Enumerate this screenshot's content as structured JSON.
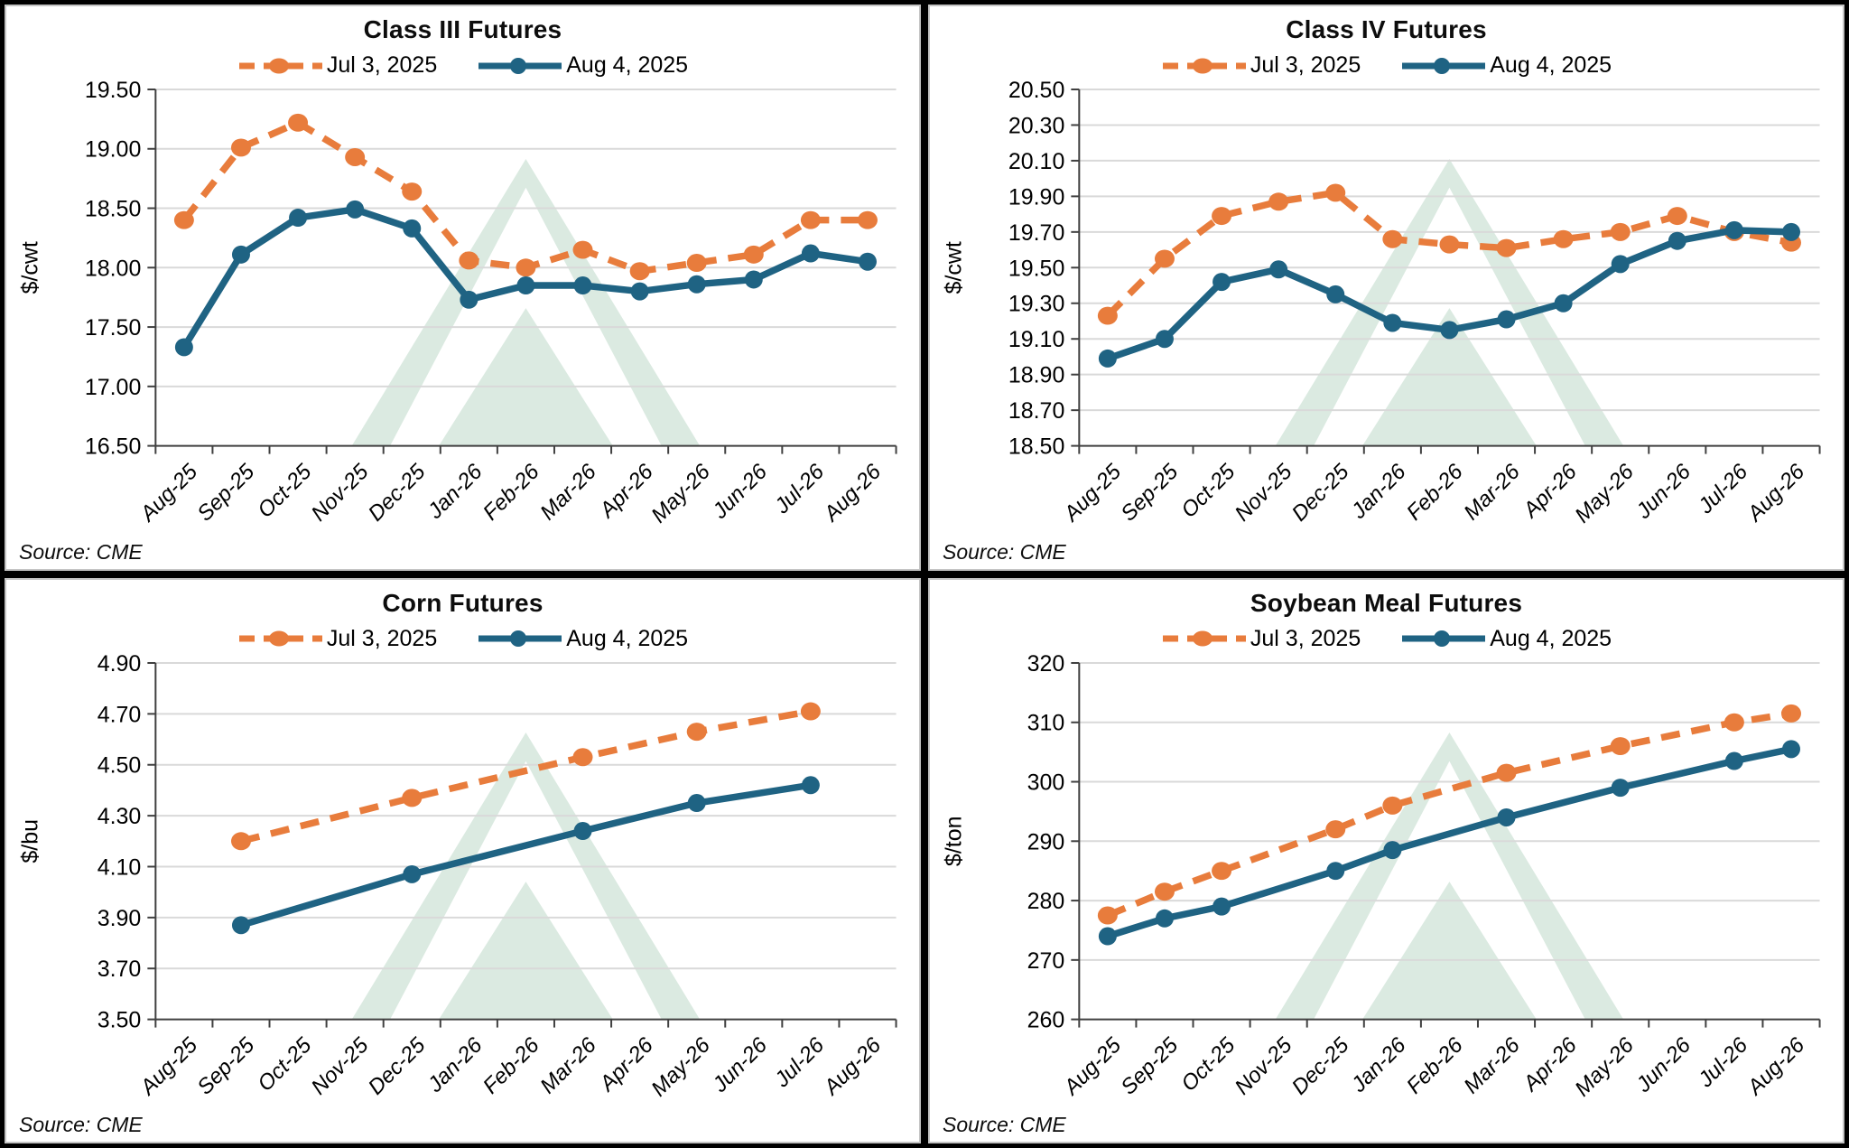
{
  "colors": {
    "jul3": "#E87C3C",
    "aug4": "#1F6383",
    "grid": "#D9D9D9",
    "axis": "#404040",
    "watermark": "#DBEAE1",
    "panel_border": "#C4C4C4",
    "background": "#FFFFFF",
    "text": "#000000"
  },
  "legend": {
    "series1": "Jul 3, 2025",
    "series2": "Aug 4, 2025"
  },
  "months": [
    "Aug-25",
    "Sep-25",
    "Oct-25",
    "Nov-25",
    "Dec-25",
    "Jan-26",
    "Feb-26",
    "Mar-26",
    "Apr-26",
    "May-26",
    "Jun-26",
    "Jul-26",
    "Aug-26"
  ],
  "chart_data": [
    {
      "type": "line",
      "title": "Class III Futures",
      "ylabel": "$/cwt",
      "xlabel": "",
      "ylim": [
        16.5,
        19.5
      ],
      "yticks": [
        "16.50",
        "17.00",
        "17.50",
        "18.00",
        "18.50",
        "19.00",
        "19.50"
      ],
      "grid": "horizontal",
      "legend_position": "top",
      "categories": [
        "Aug-25",
        "Sep-25",
        "Oct-25",
        "Nov-25",
        "Dec-25",
        "Jan-26",
        "Feb-26",
        "Mar-26",
        "Apr-26",
        "May-26",
        "Jun-26",
        "Jul-26",
        "Aug-26"
      ],
      "series": [
        {
          "name": "Jul 3, 2025",
          "style": "dashed",
          "color_key": "jul3",
          "x_indices": [
            0,
            1,
            2,
            3,
            4,
            5,
            6,
            7,
            8,
            9,
            10,
            11,
            12
          ],
          "values": [
            18.4,
            19.01,
            19.22,
            18.93,
            18.64,
            18.06,
            18.0,
            18.15,
            17.97,
            18.04,
            18.11,
            18.4,
            18.4
          ]
        },
        {
          "name": "Aug 4, 2025",
          "style": "solid",
          "color_key": "aug4",
          "x_indices": [
            0,
            1,
            2,
            3,
            4,
            5,
            6,
            7,
            8,
            9,
            10,
            11,
            12
          ],
          "values": [
            17.33,
            18.11,
            18.42,
            18.49,
            18.33,
            17.73,
            17.85,
            17.85,
            17.8,
            17.86,
            17.9,
            18.12,
            18.05
          ]
        }
      ],
      "source": "Source: CME"
    },
    {
      "type": "line",
      "title": "Class IV Futures",
      "ylabel": "$/cwt",
      "xlabel": "",
      "ylim": [
        18.5,
        20.5
      ],
      "yticks": [
        "18.50",
        "18.70",
        "18.90",
        "19.10",
        "19.30",
        "19.50",
        "19.70",
        "19.90",
        "20.10",
        "20.30",
        "20.50"
      ],
      "grid": "horizontal",
      "legend_position": "top",
      "categories": [
        "Aug-25",
        "Sep-25",
        "Oct-25",
        "Nov-25",
        "Dec-25",
        "Jan-26",
        "Feb-26",
        "Mar-26",
        "Apr-26",
        "May-26",
        "Jun-26",
        "Jul-26",
        "Aug-26"
      ],
      "series": [
        {
          "name": "Jul 3, 2025",
          "style": "dashed",
          "color_key": "jul3",
          "x_indices": [
            0,
            1,
            2,
            3,
            4,
            5,
            6,
            7,
            8,
            9,
            10,
            11,
            12
          ],
          "values": [
            19.23,
            19.55,
            19.79,
            19.87,
            19.92,
            19.66,
            19.63,
            19.61,
            19.66,
            19.7,
            19.79,
            19.7,
            19.64
          ]
        },
        {
          "name": "Aug 4, 2025",
          "style": "solid",
          "color_key": "aug4",
          "x_indices": [
            0,
            1,
            2,
            3,
            4,
            5,
            6,
            7,
            8,
            9,
            10,
            11,
            12
          ],
          "values": [
            18.99,
            19.1,
            19.42,
            19.49,
            19.35,
            19.19,
            19.15,
            19.21,
            19.3,
            19.52,
            19.65,
            19.71,
            19.7
          ]
        }
      ],
      "source": "Source: CME"
    },
    {
      "type": "line",
      "title": "Corn Futures",
      "ylabel": "$/bu",
      "xlabel": "",
      "ylim": [
        3.5,
        4.9
      ],
      "yticks": [
        "3.50",
        "3.70",
        "3.90",
        "4.10",
        "4.30",
        "4.50",
        "4.70",
        "4.90"
      ],
      "grid": "horizontal",
      "legend_position": "top",
      "categories": [
        "Aug-25",
        "Sep-25",
        "Oct-25",
        "Nov-25",
        "Dec-25",
        "Jan-26",
        "Feb-26",
        "Mar-26",
        "Apr-26",
        "May-26",
        "Jun-26",
        "Jul-26",
        "Aug-26"
      ],
      "series": [
        {
          "name": "Jul 3, 2025",
          "style": "dashed",
          "color_key": "jul3",
          "x_indices": [
            1,
            4,
            7,
            9,
            11
          ],
          "values": [
            4.2,
            4.37,
            4.53,
            4.63,
            4.71
          ]
        },
        {
          "name": "Aug 4, 2025",
          "style": "solid",
          "color_key": "aug4",
          "x_indices": [
            1,
            4,
            7,
            9,
            11
          ],
          "values": [
            3.87,
            4.07,
            4.24,
            4.35,
            4.42
          ]
        }
      ],
      "source": "Source: CME"
    },
    {
      "type": "line",
      "title": "Soybean Meal Futures",
      "ylabel": "$/ton",
      "xlabel": "",
      "ylim": [
        260,
        320
      ],
      "yticks": [
        "260",
        "270",
        "280",
        "290",
        "300",
        "310",
        "320"
      ],
      "grid": "horizontal",
      "legend_position": "top",
      "categories": [
        "Aug-25",
        "Sep-25",
        "Oct-25",
        "Nov-25",
        "Dec-25",
        "Jan-26",
        "Feb-26",
        "Mar-26",
        "Apr-26",
        "May-26",
        "Jun-26",
        "Jul-26",
        "Aug-26"
      ],
      "series": [
        {
          "name": "Jul 3, 2025",
          "style": "dashed",
          "color_key": "jul3",
          "x_indices": [
            0,
            1,
            2,
            4,
            5,
            7,
            9,
            11,
            12
          ],
          "values": [
            277.5,
            281.5,
            285.0,
            292.0,
            296.0,
            301.5,
            306.0,
            310.0,
            311.5
          ]
        },
        {
          "name": "Aug 4, 2025",
          "style": "solid",
          "color_key": "aug4",
          "x_indices": [
            0,
            1,
            2,
            4,
            5,
            7,
            9,
            11,
            12
          ],
          "values": [
            274.0,
            277.0,
            279.0,
            285.0,
            288.5,
            294.0,
            299.0,
            303.5,
            305.5
          ]
        }
      ],
      "source": "Source: CME"
    }
  ]
}
